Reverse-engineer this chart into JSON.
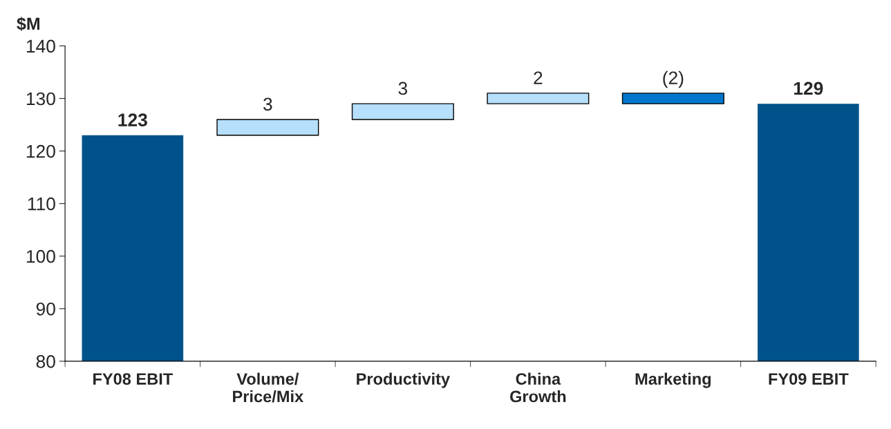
{
  "chart_data": {
    "type": "bar",
    "ylabel": "$M",
    "categories": [
      "FY08 EBIT",
      "Volume/\nPrice/Mix",
      "Productivity",
      "China\nGrowth",
      "Marketing",
      "FY09 EBIT"
    ],
    "values": [
      123,
      3,
      3,
      2,
      -2,
      129
    ],
    "base": [
      null,
      123,
      126,
      129,
      131,
      null
    ],
    "colors": [
      "#00528a",
      "#b5dffb",
      "#b5dffb",
      "#b5dffb",
      "#0077cc",
      "#00528a"
    ],
    "value_labels": [
      "123",
      "3",
      "3",
      "2",
      "(2)",
      "129"
    ],
    "ylim": [
      80,
      140
    ],
    "yticks": [
      80,
      90,
      100,
      110,
      120,
      130,
      140
    ],
    "grid": false,
    "legend": false
  }
}
